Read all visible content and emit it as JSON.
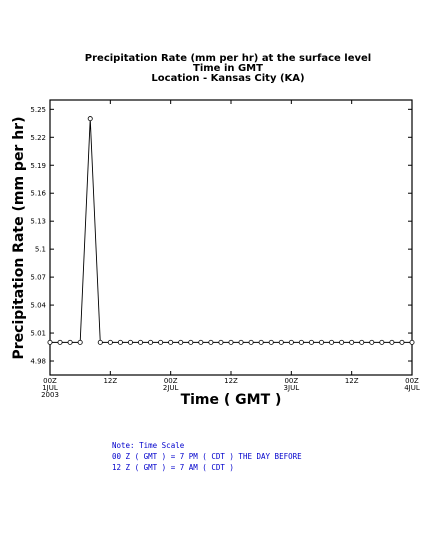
{
  "colors": {
    "axis": "#000000",
    "line": "#000000",
    "marker_fill": "#ffffff",
    "note_text": "#0000cc"
  },
  "chart_data": {
    "type": "line",
    "title_lines": [
      "Precipitation Rate (mm per hr) at the surface level",
      "Time in GMT",
      "Location - Kansas City (KA)"
    ],
    "xlabel": "Time ( GMT )",
    "ylabel": "Precipitation Rate (mm per hr)",
    "ylim": [
      4.965,
      5.26
    ],
    "xlim": [
      0,
      72
    ],
    "y_ticks": [
      {
        "value": 4.98,
        "label": "4.98"
      },
      {
        "value": 5.01,
        "label": "5.01"
      },
      {
        "value": 5.04,
        "label": "5.04"
      },
      {
        "value": 5.07,
        "label": "5.07"
      },
      {
        "value": 5.1,
        "label": "5.1"
      },
      {
        "value": 5.13,
        "label": "5.13"
      },
      {
        "value": 5.16,
        "label": "5.16"
      },
      {
        "value": 5.19,
        "label": "5.19"
      },
      {
        "value": 5.22,
        "label": "5.22"
      },
      {
        "value": 5.25,
        "label": "5.25"
      }
    ],
    "x_ticks": [
      {
        "value": 0,
        "lines": [
          "00Z",
          "1JUL",
          "2003"
        ]
      },
      {
        "value": 12,
        "lines": [
          "12Z"
        ]
      },
      {
        "value": 24,
        "lines": [
          "00Z",
          "2JUL"
        ]
      },
      {
        "value": 36,
        "lines": [
          "12Z"
        ]
      },
      {
        "value": 48,
        "lines": [
          "00Z",
          "3JUL"
        ]
      },
      {
        "value": 60,
        "lines": [
          "12Z"
        ]
      },
      {
        "value": 72,
        "lines": [
          "00Z",
          "4JUL"
        ]
      }
    ],
    "series": [
      {
        "x": [
          0,
          2,
          4,
          6,
          8,
          10,
          12,
          14,
          16,
          18,
          20,
          22,
          24,
          26,
          28,
          30,
          32,
          34,
          36,
          38,
          40,
          42,
          44,
          46,
          48,
          50,
          52,
          54,
          56,
          58,
          60,
          62,
          64,
          66,
          68,
          70,
          72
        ],
        "y": [
          5.0,
          5.0,
          5.0,
          5.0,
          5.24,
          5.0,
          5.0,
          5.0,
          5.0,
          5.0,
          5.0,
          5.0,
          5.0,
          5.0,
          5.0,
          5.0,
          5.0,
          5.0,
          5.0,
          5.0,
          5.0,
          5.0,
          5.0,
          5.0,
          5.0,
          5.0,
          5.0,
          5.0,
          5.0,
          5.0,
          5.0,
          5.0,
          5.0,
          5.0,
          5.0,
          5.0,
          5.0
        ]
      }
    ],
    "grid": false,
    "legend": "none"
  },
  "note": {
    "lines": [
      "Note: Time Scale",
      "00 Z ( GMT ) = 7 PM ( CDT ) THE DAY BEFORE",
      "12 Z ( GMT ) = 7 AM ( CDT )"
    ]
  }
}
